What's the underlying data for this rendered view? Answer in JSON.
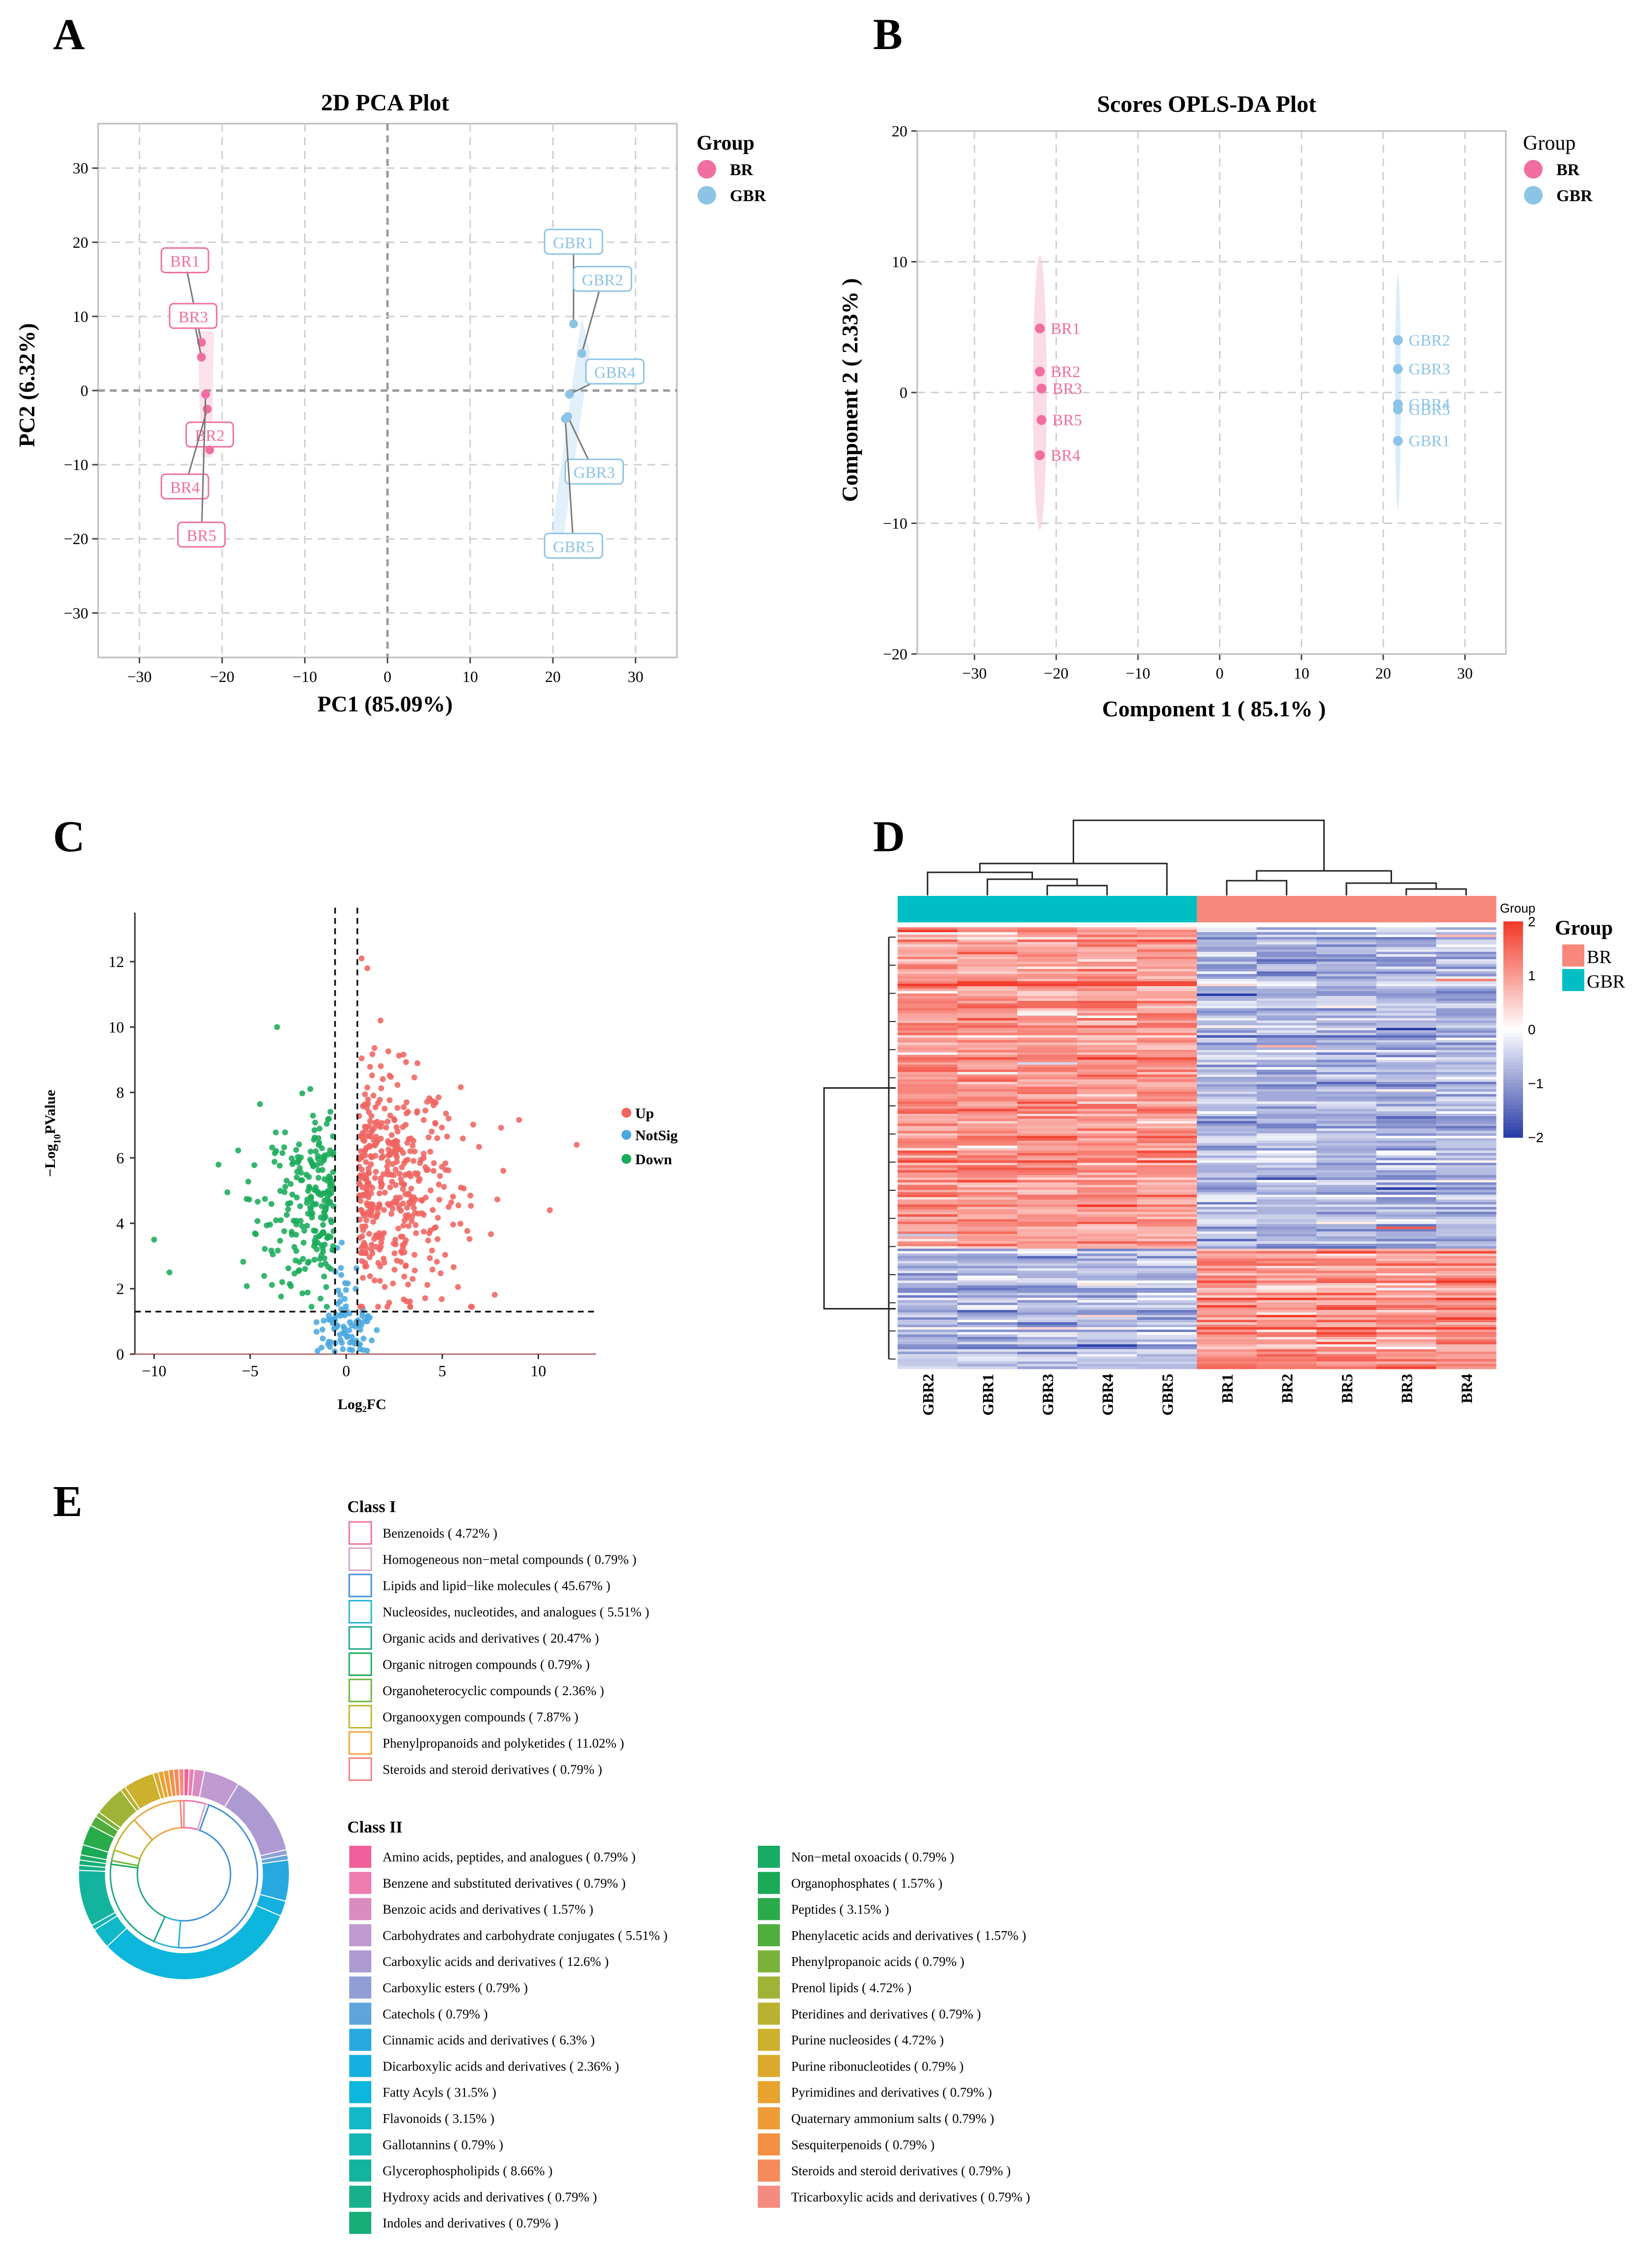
{
  "panels": {
    "a": {
      "letter": "A",
      "chart_data": {
        "type": "scatter",
        "title": "2D PCA Plot",
        "xlabel": "PC1 (85.09%)",
        "ylabel": "PC2 (6.32%)",
        "xlim": [
          -35,
          35
        ],
        "ylim": [
          -36,
          36
        ],
        "xticks": [
          -30,
          -20,
          -10,
          0,
          10,
          20,
          30
        ],
        "yticks": [
          -30,
          -20,
          -10,
          0,
          10,
          20,
          30
        ],
        "legend_title": "Group",
        "series": [
          {
            "name": "BR",
            "color": "#f06ea0",
            "points": [
              {
                "label": "BR1",
                "x": -22.5,
                "y": 6.5
              },
              {
                "label": "BR3",
                "x": -22.5,
                "y": 4.5
              },
              {
                "label": "BR2",
                "x": -21.5,
                "y": -8.0
              },
              {
                "label": "BR4",
                "x": -21.8,
                "y": -2.5
              },
              {
                "label": "BR5",
                "x": -22.0,
                "y": -0.5
              }
            ]
          },
          {
            "name": "GBR",
            "color": "#8cc4e6",
            "points": [
              {
                "label": "GBR1",
                "x": 22.5,
                "y": 9.0
              },
              {
                "label": "GBR2",
                "x": 23.5,
                "y": 5.0
              },
              {
                "label": "GBR4",
                "x": 22.0,
                "y": -0.5
              },
              {
                "label": "GBR3",
                "x": 21.8,
                "y": -3.5
              },
              {
                "label": "GBR5",
                "x": 21.5,
                "y": -3.8
              }
            ]
          }
        ]
      }
    },
    "b": {
      "letter": "B",
      "chart_data": {
        "type": "scatter",
        "title": "Scores OPLS-DA Plot",
        "xlabel": "Component 1 ( 85.1% )",
        "ylabel": "Component 2 ( 2.33% )",
        "xlim": [
          -37,
          35
        ],
        "ylim": [
          -20,
          20
        ],
        "xticks": [
          -30,
          -20,
          -10,
          0,
          10,
          20,
          30
        ],
        "yticks": [
          -20,
          -10,
          0,
          10,
          20
        ],
        "legend_title": "Group",
        "series": [
          {
            "name": "BR",
            "color": "#f06ea0",
            "points": [
              {
                "label": "BR1",
                "x": -22.0,
                "y": 4.9
              },
              {
                "label": "BR2",
                "x": -22.0,
                "y": 1.6
              },
              {
                "label": "BR3",
                "x": -21.8,
                "y": 0.3
              },
              {
                "label": "BR5",
                "x": -21.8,
                "y": -2.1
              },
              {
                "label": "BR4",
                "x": -22.0,
                "y": -4.8
              }
            ]
          },
          {
            "name": "GBR",
            "color": "#8cc4e6",
            "points": [
              {
                "label": "GBR2",
                "x": 21.8,
                "y": 4.0
              },
              {
                "label": "GBR3",
                "x": 21.8,
                "y": 1.8
              },
              {
                "label": "GBR4",
                "x": 21.8,
                "y": -0.9
              },
              {
                "label": "GBR5",
                "x": 21.8,
                "y": -1.3
              },
              {
                "label": "GBR1",
                "x": 21.8,
                "y": -3.7
              }
            ]
          }
        ]
      }
    },
    "c": {
      "letter": "C",
      "chart_data": {
        "type": "scatter",
        "title": "",
        "xlabel": "Log₂FC",
        "ylabel_main": "−Log",
        "ylabel_sub": "10",
        "ylabel_end": "PValue",
        "xlim": [
          -11,
          13
        ],
        "ylim": [
          0,
          13.5
        ],
        "xticks": [
          -10,
          -5,
          0,
          5,
          10
        ],
        "yticks": [
          0,
          2,
          4,
          6,
          8,
          10,
          12
        ],
        "thresholds": {
          "log2fc": [
            -0.58,
            0.58
          ],
          "neg_log10_p": 1.3
        },
        "legend": [
          {
            "name": "Up",
            "color": "#ef6461"
          },
          {
            "name": "NotSig",
            "color": "#4aa8e0"
          },
          {
            "name": "Down",
            "color": "#1aab5a"
          }
        ],
        "point_counts": {
          "Up": 430,
          "NotSig": 95,
          "Down": 230
        },
        "notable_points": [
          {
            "group": "Up",
            "x": 0.8,
            "y": 12.1
          },
          {
            "group": "Up",
            "x": 1.1,
            "y": 11.8
          },
          {
            "group": "Down",
            "x": -3.6,
            "y": 10.0
          },
          {
            "group": "Down",
            "x": -10.0,
            "y": 3.5
          },
          {
            "group": "Down",
            "x": -9.2,
            "y": 2.5
          },
          {
            "group": "Up",
            "x": 12.0,
            "y": 6.4
          },
          {
            "group": "Up",
            "x": 10.6,
            "y": 4.4
          }
        ]
      }
    },
    "d": {
      "letter": "D",
      "chart_data": {
        "type": "heatmap",
        "columns": [
          "GBR2",
          "GBR1",
          "GBR3",
          "GBR4",
          "GBR5",
          "BR1",
          "BR2",
          "BR5",
          "BR3",
          "BR4"
        ],
        "column_groups": [
          "GBR",
          "GBR",
          "GBR",
          "GBR",
          "GBR",
          "BR",
          "BR",
          "BR",
          "BR",
          "BR"
        ],
        "group_colors": {
          "GBR": "#00bfc4",
          "BR": "#f8877c"
        },
        "color_scale": {
          "min": -2,
          "max": 2,
          "low": "#2b3ea8",
          "mid": "#ffffff",
          "high": "#f23b2b"
        },
        "colorbar_ticks": [
          "2",
          "1",
          "0",
          "−1",
          "−2"
        ],
        "colorbar_title": "Group",
        "legend_title": "Group",
        "legend": [
          {
            "name": "BR",
            "color": "#f8877c"
          },
          {
            "name": "GBR",
            "color": "#00bfc4"
          }
        ],
        "row_blocks": [
          {
            "pattern": "GBR high / BR low",
            "fraction": 0.73
          },
          {
            "pattern": "GBR low / BR high",
            "fraction": 0.27
          }
        ]
      }
    },
    "e": {
      "letter": "E",
      "chart_data": {
        "type": "pie",
        "class1_title": "Class I",
        "class1": [
          {
            "label": "Benzenoids ( 4.72% )",
            "value": 4.72,
            "color": "#f06ea0"
          },
          {
            "label": "Homogeneous non−metal compounds ( 0.79% )",
            "value": 0.79,
            "color": "#d9a5c8"
          },
          {
            "label": "Lipids and lipid−like molecules ( 45.67% )",
            "value": 45.67,
            "color": "#3f8fd9"
          },
          {
            "label": "Nucleosides, nucleotides, and analogues ( 5.51% )",
            "value": 5.51,
            "color": "#27b4d9"
          },
          {
            "label": "Organic acids and derivatives ( 20.47% )",
            "value": 20.47,
            "color": "#1aa68c"
          },
          {
            "label": "Organic nitrogen compounds ( 0.79% )",
            "value": 0.79,
            "color": "#17ad5a"
          },
          {
            "label": "Organoheterocyclic compounds ( 2.36% )",
            "value": 2.36,
            "color": "#6bb23a"
          },
          {
            "label": "Organooxygen compounds ( 7.87% )",
            "value": 7.87,
            "color": "#c4b22c"
          },
          {
            "label": "Phenylpropanoids and polyketides ( 11.02% )",
            "value": 11.02,
            "color": "#f0a23b"
          },
          {
            "label": "Steroids and steroid derivatives ( 0.79% )",
            "value": 0.79,
            "color": "#f47f7a"
          }
        ],
        "class2_title": "Class II",
        "class2": [
          {
            "label": "Amino acids, peptides, and analogues ( 0.79% )",
            "value": 0.79,
            "color": "#f0609a"
          },
          {
            "label": "Benzene and substituted derivatives ( 0.79% )",
            "value": 0.79,
            "color": "#ee7db0"
          },
          {
            "label": "Benzoic acids and derivatives ( 1.57% )",
            "value": 1.57,
            "color": "#d98cc0"
          },
          {
            "label": "Carbohydrates and carbohydrate conjugates ( 5.51% )",
            "value": 5.51,
            "color": "#c09ad0"
          },
          {
            "label": "Carboxylic acids and derivatives ( 12.6% )",
            "value": 12.6,
            "color": "#ad9ad2"
          },
          {
            "label": "Carboxylic esters ( 0.79% )",
            "value": 0.79,
            "color": "#8f9fd6"
          },
          {
            "label": "Catechols ( 0.79% )",
            "value": 0.79,
            "color": "#5fa5dc"
          },
          {
            "label": "Cinnamic acids and derivatives ( 6.3% )",
            "value": 6.3,
            "color": "#27a9e0"
          },
          {
            "label": "Dicarboxylic acids and derivatives ( 2.36% )",
            "value": 2.36,
            "color": "#15b0e0"
          },
          {
            "label": "Fatty Acyls ( 31.5% )",
            "value": 31.5,
            "color": "#0db6dc"
          },
          {
            "label": "Flavonoids ( 3.15% )",
            "value": 3.15,
            "color": "#11b8c8"
          },
          {
            "label": "Gallotannins ( 0.79% )",
            "value": 0.79,
            "color": "#12b6b4"
          },
          {
            "label": "Glycerophospholipids ( 8.66% )",
            "value": 8.66,
            "color": "#14b39e"
          },
          {
            "label": "Hydroxy acids and derivatives ( 0.79% )",
            "value": 0.79,
            "color": "#16b08a"
          },
          {
            "label": "Indoles and derivatives ( 0.79% )",
            "value": 0.79,
            "color": "#17ad76"
          },
          {
            "label": "Non−metal oxoacids ( 0.79% )",
            "value": 0.79,
            "color": "#18ab64"
          },
          {
            "label": "Organophosphates ( 1.57% )",
            "value": 1.57,
            "color": "#1aa956"
          },
          {
            "label": "Peptides ( 3.15% )",
            "value": 3.15,
            "color": "#2aab4a"
          },
          {
            "label": "Phenylacetic acids and derivatives ( 1.57% )",
            "value": 1.57,
            "color": "#4fae3e"
          },
          {
            "label": "Phenylpropanoic acids ( 0.79% )",
            "value": 0.79,
            "color": "#7bb23a"
          },
          {
            "label": "Prenol lipids ( 4.72% )",
            "value": 4.72,
            "color": "#9fb436"
          },
          {
            "label": "Pteridines and derivatives ( 0.79% )",
            "value": 0.79,
            "color": "#b8b230"
          },
          {
            "label": "Purine nucleosides ( 4.72% )",
            "value": 4.72,
            "color": "#cdb02c"
          },
          {
            "label": "Purine ribonucleotides ( 0.79% )",
            "value": 0.79,
            "color": "#dca92c"
          },
          {
            "label": "Pyrimidines and derivatives ( 0.79% )",
            "value": 0.79,
            "color": "#e8a22e"
          },
          {
            "label": "Quaternary ammonium salts ( 0.79% )",
            "value": 0.79,
            "color": "#ef9b36"
          },
          {
            "label": "Sesquiterpenoids ( 0.79% )",
            "value": 0.79,
            "color": "#f39044"
          },
          {
            "label": "Steroids and steroid derivatives ( 0.79% )",
            "value": 0.79,
            "color": "#f58a5a"
          },
          {
            "label": "Tricarboxylic acids and derivatives ( 0.79% )",
            "value": 0.79,
            "color": "#f58a80"
          }
        ]
      }
    }
  }
}
